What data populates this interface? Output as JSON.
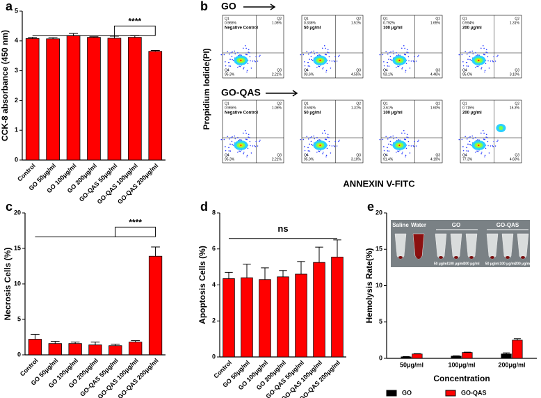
{
  "chart_data": [
    {
      "panel": "a",
      "type": "bar",
      "ylabel": "CCK-8 absorbance (450 nm)",
      "categories": [
        "Control",
        "GO 50μg/ml",
        "GO 100μg/ml",
        "GO 200μg/ml",
        "GO-QAS 50μg/ml",
        "GO-QAS 100μg/ml",
        "GO-QAS 200μg/ml"
      ],
      "values": [
        4.08,
        4.07,
        4.18,
        4.12,
        4.09,
        4.12,
        3.65
      ],
      "errors": [
        0.04,
        0.04,
        0.07,
        0.02,
        0.07,
        0.06,
        0.03
      ],
      "color": "#ff0000",
      "ylim": [
        0,
        5
      ],
      "yticks": [
        0,
        1,
        2,
        3,
        4,
        5
      ],
      "annotation": "****"
    },
    {
      "panel": "c",
      "type": "bar",
      "ylabel": "Necrosis Cells (%)",
      "categories": [
        "Control",
        "GO 50μg/ml",
        "GO 100μg/ml",
        "GO 200μg/ml",
        "GO-QAS 50μg/ml",
        "GO-QAS 100μg/ml",
        "GO-QAS 200μg/ml"
      ],
      "values": [
        2.2,
        1.6,
        1.6,
        1.4,
        1.3,
        1.8,
        13.9
      ],
      "errors": [
        0.7,
        0.3,
        0.2,
        0.4,
        0.2,
        0.2,
        1.3
      ],
      "color": "#ff0000",
      "ylim": [
        0,
        20
      ],
      "yticks": [
        0,
        5,
        10,
        15,
        20
      ],
      "annotation": "****"
    },
    {
      "panel": "d",
      "type": "bar",
      "ylabel": "Apoptosis Cells (%)",
      "categories": [
        "Control",
        "GO 50μg/ml",
        "GO 100μg/ml",
        "GO 200μg/ml",
        "GO-QAS 50μg/ml",
        "GO-QAS 100μg/ml",
        "GO-QAS 200μg/ml"
      ],
      "values": [
        4.35,
        4.4,
        4.3,
        4.45,
        4.6,
        5.25,
        5.55
      ],
      "errors": [
        0.35,
        0.75,
        0.65,
        0.35,
        0.7,
        0.85,
        0.95
      ],
      "color": "#ff0000",
      "ylim": [
        0,
        8
      ],
      "yticks": [
        0,
        2,
        4,
        6,
        8
      ],
      "annotation": "ns"
    },
    {
      "panel": "e",
      "type": "grouped-bar",
      "ylabel": "Hemolysis Rate(%)",
      "xlabel": "Concentration",
      "categories": [
        "50μg/ml",
        "100μg/ml",
        "200μg/ml"
      ],
      "series": [
        {
          "name": "GO",
          "color": "#000000",
          "values": [
            0.2,
            0.3,
            0.6
          ],
          "errors": [
            0.05,
            0.05,
            0.15
          ]
        },
        {
          "name": "GO-QAS",
          "color": "#ff0000",
          "values": [
            0.6,
            0.8,
            2.5
          ],
          "errors": [
            0.05,
            0.05,
            0.2
          ]
        }
      ],
      "ylim": [
        0,
        20
      ],
      "yticks": [
        0,
        5,
        10,
        15,
        20
      ],
      "inset_labels": [
        "Saline",
        "Water",
        "GO",
        "GO-QAS"
      ],
      "inset_conc": [
        "50 μg/ml",
        "100 μg/ml",
        "200 μg/ml"
      ]
    }
  ],
  "flow": {
    "panel": "b",
    "ylabel": "Propidium Iodide(PI)",
    "xlabel": "ANNEXIN V-FITC",
    "quadrants": [
      "Q1",
      "Q2",
      "Q3",
      "Q4"
    ],
    "rows": [
      {
        "name": "GO",
        "plots": [
          {
            "label": "Negative Control",
            "q": [
              "0.965%",
              "1.05%",
              "2.21%",
              "95.3%"
            ]
          },
          {
            "label": "50 μg/ml",
            "q": [
              "0.336%",
              "1.51%",
              "4.55%",
              "93.6%"
            ]
          },
          {
            "label": "100 μg/ml",
            "q": [
              "0.792%",
              "1.65%",
              "4.46%",
              "93.1%"
            ]
          },
          {
            "label": "200 μg/ml",
            "q": [
              "0.594%",
              "1.31%",
              "3.10%",
              "95.0%"
            ]
          }
        ]
      },
      {
        "name": "GO-QAS",
        "plots": [
          {
            "label": "Negative Control",
            "q": [
              "0.965%",
              "1.05%",
              "2.21%",
              "95.3%"
            ]
          },
          {
            "label": "50 μg/ml",
            "q": [
              "0.594%",
              "1.31%",
              "3.10%",
              "95.0%"
            ]
          },
          {
            "label": "100 μg/ml",
            "q": [
              "3.61%",
              "1.60%",
              "4.19%",
              "91.4%"
            ]
          },
          {
            "label": "200 μg/ml",
            "q": [
              "0.715%",
              "15.3%",
              "4.60%",
              "77.3%"
            ]
          }
        ]
      }
    ]
  }
}
